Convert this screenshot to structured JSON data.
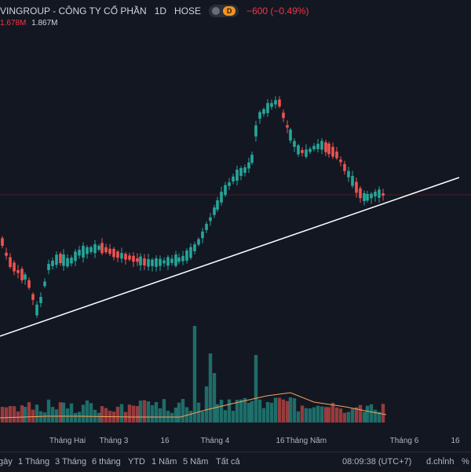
{
  "header": {
    "symbol_title": "VINGROUP - CÔNG TY CỔ PHẦN",
    "interval": "1D",
    "exchange": "HOSE",
    "status_letter": "D",
    "change": "−600 (−0.49%)",
    "volume_values": [
      "1.678M",
      "1.867M"
    ]
  },
  "bottom_bar": {
    "ranges": [
      "gày",
      "1 Tháng",
      "3 Tháng",
      "6 tháng",
      "YTD",
      "1 Năm",
      "5 Năm",
      "Tất cả"
    ],
    "clock": "08:09:38 (UTC+7)",
    "adjust": "đ.chỉnh",
    "percent": "%"
  },
  "chart_data": {
    "type": "candlestick",
    "x_ticks": [
      "Tháng Hai",
      "Tháng 3",
      "16",
      "Tháng 4",
      "16",
      "Tháng Năm",
      "Tháng 6",
      "16"
    ],
    "colors": {
      "up": "#26a69a",
      "down": "#ef5350",
      "volume_ma": "#f7a35c",
      "trendline": "#ffffff",
      "price_line": "#f23645"
    }
  }
}
